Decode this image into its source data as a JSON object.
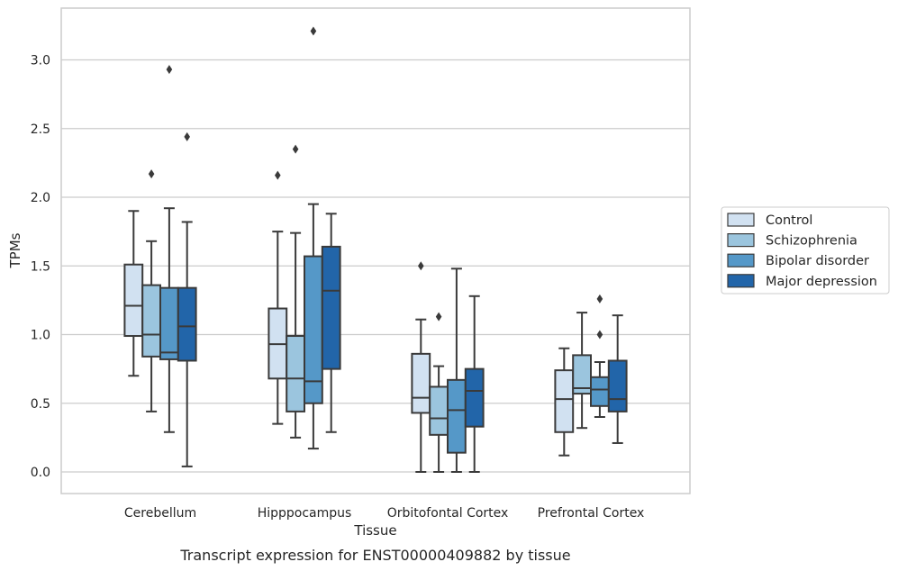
{
  "chart_data": {
    "type": "box",
    "caption": "Transcript expression for ENST00000409882 by tissue",
    "xlabel": "Tissue",
    "ylabel": "TPMs",
    "ylim": [
      -0.15,
      3.38
    ],
    "yticks": [
      "0.0",
      "0.5",
      "1.0",
      "1.5",
      "2.0",
      "2.5",
      "3.0"
    ],
    "grid": "horizontal",
    "legend_position": "right",
    "categories": [
      "Cerebellum",
      "Hipppocampus",
      "Orbitofontal Cortex",
      "Prefrontal Cortex"
    ],
    "series": [
      {
        "name": "Control",
        "color": "#d1e1f1",
        "boxes": [
          {
            "whisker_low": 0.7,
            "q1": 0.99,
            "median": 1.21,
            "q3": 1.51,
            "whisker_high": 1.9,
            "outliers": []
          },
          {
            "whisker_low": 0.35,
            "q1": 0.68,
            "median": 0.93,
            "q3": 1.19,
            "whisker_high": 1.75,
            "outliers": [
              2.16
            ]
          },
          {
            "whisker_low": 0.0,
            "q1": 0.43,
            "median": 0.54,
            "q3": 0.86,
            "whisker_high": 1.11,
            "outliers": [
              1.5
            ]
          },
          {
            "whisker_low": 0.12,
            "q1": 0.29,
            "median": 0.53,
            "q3": 0.74,
            "whisker_high": 0.9,
            "outliers": []
          }
        ]
      },
      {
        "name": "Schizophrenia",
        "color": "#9bc5de",
        "boxes": [
          {
            "whisker_low": 0.44,
            "q1": 0.84,
            "median": 1.0,
            "q3": 1.36,
            "whisker_high": 1.68,
            "outliers": [
              2.17
            ]
          },
          {
            "whisker_low": 0.25,
            "q1": 0.44,
            "median": 0.68,
            "q3": 0.99,
            "whisker_high": 1.74,
            "outliers": [
              2.35
            ]
          },
          {
            "whisker_low": 0.0,
            "q1": 0.27,
            "median": 0.39,
            "q3": 0.62,
            "whisker_high": 0.77,
            "outliers": [
              1.13
            ]
          },
          {
            "whisker_low": 0.32,
            "q1": 0.57,
            "median": 0.61,
            "q3": 0.85,
            "whisker_high": 1.16,
            "outliers": []
          }
        ]
      },
      {
        "name": "Bipolar disorder",
        "color": "#5598c8",
        "boxes": [
          {
            "whisker_low": 0.29,
            "q1": 0.82,
            "median": 0.87,
            "q3": 1.34,
            "whisker_high": 1.92,
            "outliers": [
              2.93
            ]
          },
          {
            "whisker_low": 0.17,
            "q1": 0.5,
            "median": 0.66,
            "q3": 1.57,
            "whisker_high": 1.95,
            "outliers": [
              3.21
            ]
          },
          {
            "whisker_low": 0.0,
            "q1": 0.14,
            "median": 0.45,
            "q3": 0.67,
            "whisker_high": 1.48,
            "outliers": []
          },
          {
            "whisker_low": 0.4,
            "q1": 0.48,
            "median": 0.6,
            "q3": 0.69,
            "whisker_high": 0.8,
            "outliers": [
              1.26,
              1.0
            ]
          }
        ]
      },
      {
        "name": "Major depression",
        "color": "#2265a9",
        "boxes": [
          {
            "whisker_low": 0.04,
            "q1": 0.81,
            "median": 1.06,
            "q3": 1.34,
            "whisker_high": 1.82,
            "outliers": [
              2.44
            ]
          },
          {
            "whisker_low": 0.29,
            "q1": 0.75,
            "median": 1.32,
            "q3": 1.64,
            "whisker_high": 1.88,
            "outliers": []
          },
          {
            "whisker_low": 0.0,
            "q1": 0.33,
            "median": 0.59,
            "q3": 0.75,
            "whisker_high": 1.28,
            "outliers": []
          },
          {
            "whisker_low": 0.21,
            "q1": 0.44,
            "median": 0.53,
            "q3": 0.81,
            "whisker_high": 1.14,
            "outliers": []
          }
        ]
      }
    ]
  }
}
